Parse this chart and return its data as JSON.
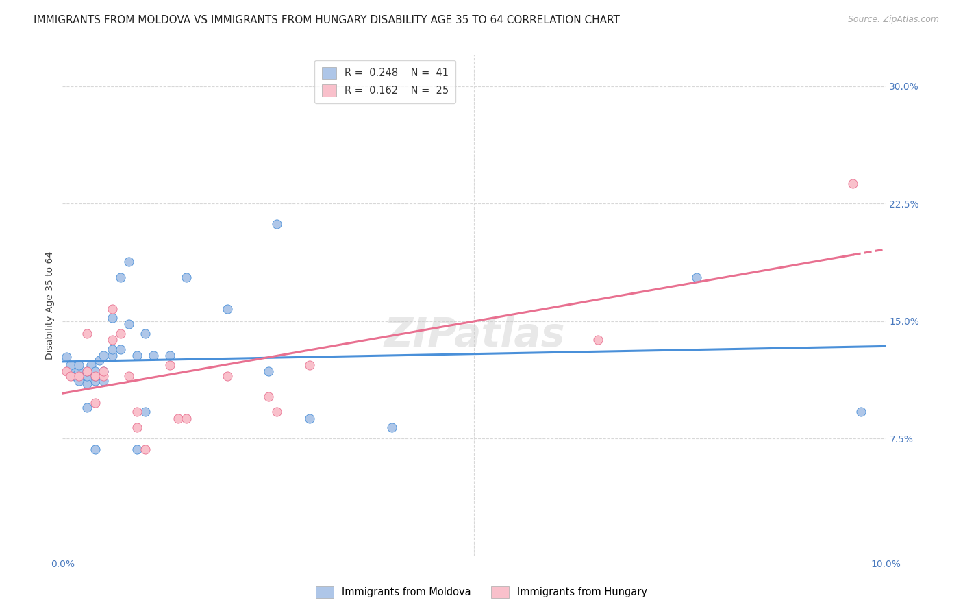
{
  "title": "IMMIGRANTS FROM MOLDOVA VS IMMIGRANTS FROM HUNGARY DISABILITY AGE 35 TO 64 CORRELATION CHART",
  "source": "Source: ZipAtlas.com",
  "ylabel_label": "Disability Age 35 to 64",
  "xlim": [
    0.0,
    0.1
  ],
  "ylim": [
    0.0,
    0.32
  ],
  "ytick_right_labels": [
    "7.5%",
    "15.0%",
    "22.5%",
    "30.0%"
  ],
  "ytick_right_vals": [
    0.075,
    0.15,
    0.225,
    0.3
  ],
  "moldova_R": "0.248",
  "moldova_N": "41",
  "hungary_R": "0.162",
  "hungary_N": "25",
  "moldova_color": "#aec6e8",
  "moldova_line_color": "#4a90d9",
  "hungary_color": "#f9c0cb",
  "hungary_line_color": "#e87090",
  "background_color": "#ffffff",
  "grid_color": "#d8d8d8",
  "moldova_x": [
    0.0005,
    0.001,
    0.001,
    0.0015,
    0.002,
    0.002,
    0.002,
    0.003,
    0.003,
    0.003,
    0.003,
    0.0035,
    0.004,
    0.004,
    0.004,
    0.004,
    0.0045,
    0.005,
    0.005,
    0.005,
    0.006,
    0.006,
    0.006,
    0.007,
    0.007,
    0.008,
    0.008,
    0.009,
    0.009,
    0.01,
    0.01,
    0.011,
    0.013,
    0.015,
    0.02,
    0.025,
    0.026,
    0.03,
    0.04,
    0.077,
    0.097
  ],
  "moldova_y": [
    0.127,
    0.118,
    0.122,
    0.115,
    0.112,
    0.118,
    0.122,
    0.11,
    0.115,
    0.118,
    0.095,
    0.122,
    0.112,
    0.115,
    0.118,
    0.068,
    0.125,
    0.118,
    0.128,
    0.112,
    0.128,
    0.132,
    0.152,
    0.132,
    0.178,
    0.148,
    0.188,
    0.128,
    0.068,
    0.142,
    0.092,
    0.128,
    0.128,
    0.178,
    0.158,
    0.118,
    0.212,
    0.088,
    0.082,
    0.178,
    0.092
  ],
  "hungary_x": [
    0.0005,
    0.001,
    0.002,
    0.003,
    0.003,
    0.004,
    0.004,
    0.005,
    0.005,
    0.006,
    0.006,
    0.007,
    0.008,
    0.009,
    0.009,
    0.01,
    0.013,
    0.014,
    0.015,
    0.02,
    0.025,
    0.026,
    0.03,
    0.065,
    0.096
  ],
  "hungary_y": [
    0.118,
    0.115,
    0.115,
    0.118,
    0.142,
    0.115,
    0.098,
    0.115,
    0.118,
    0.138,
    0.158,
    0.142,
    0.115,
    0.082,
    0.092,
    0.068,
    0.122,
    0.088,
    0.088,
    0.115,
    0.102,
    0.092,
    0.122,
    0.138,
    0.238
  ],
  "watermark_text": "ZIPatlas",
  "title_fontsize": 11,
  "label_fontsize": 10,
  "tick_fontsize": 10
}
